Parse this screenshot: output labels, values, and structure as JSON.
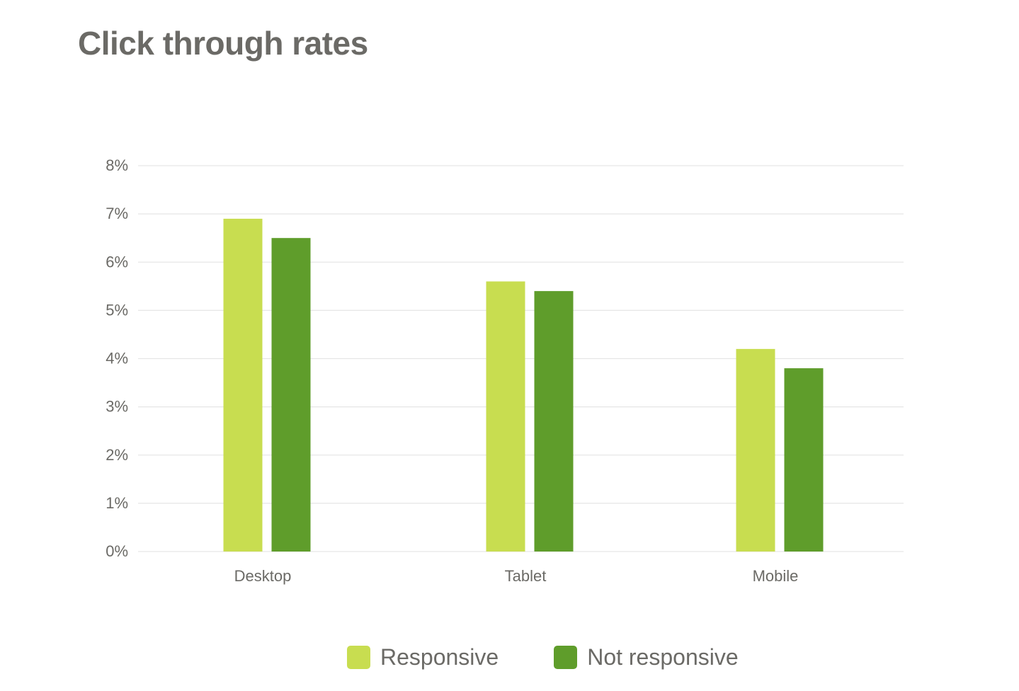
{
  "chart_data": {
    "type": "bar",
    "title": "Click through rates",
    "categories": [
      "Desktop",
      "Tablet",
      "Mobile"
    ],
    "series": [
      {
        "name": "Responsive",
        "values": [
          6.9,
          5.6,
          4.2
        ],
        "color": "#c8dd50"
      },
      {
        "name": "Not responsive",
        "values": [
          6.5,
          5.4,
          3.8
        ],
        "color": "#5f9d2b"
      }
    ],
    "ylim": [
      0,
      8
    ],
    "yticks": [
      "0%",
      "1%",
      "2%",
      "3%",
      "4%",
      "5%",
      "6%",
      "7%",
      "8%"
    ],
    "xlabel": "",
    "ylabel": "",
    "grid": true,
    "legend": "bottom-center"
  }
}
